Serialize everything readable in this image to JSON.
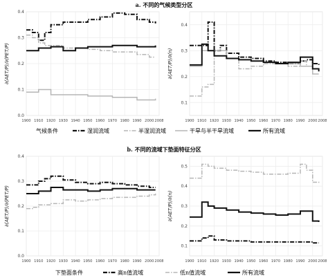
{
  "section_a": {
    "title": "a. 不同的气候类型分区"
  },
  "section_b": {
    "title": "b. 不同的流域下垫面特征分区"
  },
  "legend_a": {
    "title": "气候条件",
    "items": [
      {
        "label": "湿润流域",
        "style": "dash-dot"
      },
      {
        "label": "半湿润流域",
        "style": "dash-dot-gray"
      },
      {
        "label": "干旱与半干旱流域",
        "style": "solid-gray"
      },
      {
        "label": "所有流域",
        "style": "solid-black"
      }
    ]
  },
  "legend_b": {
    "title": "下垫面条件",
    "items": [
      {
        "label": "高n值流域",
        "style": "dash-dot"
      },
      {
        "label": "低n值流域",
        "style": "dash-dot-gray"
      },
      {
        "label": "所有流域",
        "style": "solid-black"
      }
    ]
  },
  "colors": {
    "black": "#111111",
    "gray": "#b5b5b5",
    "grid": "#ececec"
  },
  "chart_data": [
    {
      "id": "a1",
      "type": "line",
      "ylabel": "∂(AET/P)/∂(PET/P)",
      "xticks": [
        "1900",
        "1910",
        "1920",
        "1930",
        "1940",
        "1950",
        "1960",
        "1970",
        "1980",
        "1990",
        "2000",
        "2008"
      ],
      "xlim": [
        1900,
        2008
      ],
      "ylim": [
        0,
        0.4
      ],
      "yticks": [
        "0.0",
        "0.1",
        "0.2",
        "0.3",
        "0.4"
      ],
      "grid": true,
      "series": [
        {
          "style": "dash-dot",
          "x": [
            1900,
            1905,
            1910,
            1915,
            1920,
            1930,
            1940,
            1950,
            1960,
            1970,
            1980,
            1990,
            2000,
            2005
          ],
          "y": [
            0.33,
            0.32,
            0.29,
            0.32,
            0.35,
            0.36,
            0.36,
            0.37,
            0.38,
            0.395,
            0.39,
            0.37,
            0.36,
            0.355
          ]
        },
        {
          "style": "dash-dot-gray",
          "x": [
            1900,
            1905,
            1910,
            1915,
            1920,
            1930,
            1940,
            1950,
            1960,
            1970,
            1980,
            1990,
            2000,
            2005
          ],
          "y": [
            0.31,
            0.3,
            0.28,
            0.27,
            0.27,
            0.26,
            0.26,
            0.255,
            0.25,
            0.245,
            0.245,
            0.235,
            0.225,
            0.225
          ]
        },
        {
          "style": "solid-gray",
          "x": [
            1900,
            1910,
            1920,
            1930,
            1940,
            1950,
            1960,
            1970,
            1980,
            1990,
            2000,
            2005
          ],
          "y": [
            0.09,
            0.1,
            0.08,
            0.08,
            0.08,
            0.075,
            0.075,
            0.07,
            0.07,
            0.06,
            0.06,
            0.065
          ]
        },
        {
          "style": "solid-black",
          "x": [
            1900,
            1910,
            1920,
            1930,
            1940,
            1950,
            1960,
            1970,
            1980,
            1990,
            2000,
            2005
          ],
          "y": [
            0.25,
            0.26,
            0.265,
            0.25,
            0.26,
            0.265,
            0.265,
            0.27,
            0.27,
            0.265,
            0.265,
            0.27
          ]
        }
      ]
    },
    {
      "id": "a2",
      "type": "line",
      "ylabel": "∂(AET/P)/∂(n)",
      "xticks": [
        "1900",
        "1910",
        "1920",
        "1930",
        "1940",
        "1950",
        "1960",
        "1970",
        "1980",
        "1990",
        "2000",
        "2008"
      ],
      "xlim": [
        1900,
        2008
      ],
      "ylim": [
        0.05,
        0.45
      ],
      "yticks": [
        "0.1",
        "0.2",
        "0.3",
        "0.4"
      ],
      "grid": true,
      "series": [
        {
          "style": "dash-dot",
          "x": [
            1900,
            1910,
            1915,
            1920,
            1925,
            1930,
            1940,
            1950,
            1960,
            1970,
            1980,
            1990,
            1995,
            2000,
            2005
          ],
          "y": [
            0.32,
            0.32,
            0.41,
            0.3,
            0.32,
            0.29,
            0.275,
            0.27,
            0.26,
            0.255,
            0.25,
            0.26,
            0.265,
            0.25,
            0.24
          ]
        },
        {
          "style": "dash-dot-gray",
          "x": [
            1900,
            1905,
            1910,
            1915,
            1920,
            1930,
            1940,
            1950,
            1960,
            1970,
            1980,
            1990,
            1995,
            2000,
            2005
          ],
          "y": [
            0.125,
            0.125,
            0.16,
            0.17,
            0.3,
            0.27,
            0.23,
            0.24,
            0.25,
            0.25,
            0.24,
            0.26,
            0.24,
            0.23,
            0.22
          ]
        },
        {
          "style": "solid-gray",
          "x": [
            1900,
            1910,
            1920,
            1930,
            1940,
            1950,
            1960,
            1970,
            1980,
            1990,
            2000,
            2005
          ],
          "y": [
            0.24,
            0.3,
            0.3,
            0.27,
            0.265,
            0.26,
            0.255,
            0.25,
            0.25,
            0.24,
            0.21,
            0.21
          ]
        },
        {
          "style": "solid-black",
          "x": [
            1900,
            1910,
            1915,
            1920,
            1930,
            1940,
            1950,
            1960,
            1970,
            1980,
            1990,
            2000,
            2005
          ],
          "y": [
            0.245,
            0.325,
            0.3,
            0.28,
            0.27,
            0.265,
            0.26,
            0.255,
            0.25,
            0.255,
            0.275,
            0.23,
            0.22
          ]
        }
      ]
    },
    {
      "id": "b1",
      "type": "line",
      "ylabel": "∂(AET/P)/∂(PET/P)",
      "xticks": [
        "1900",
        "1910",
        "1920",
        "1930",
        "1940",
        "1950",
        "1960",
        "1970",
        "1980",
        "1990",
        "2000",
        "2008"
      ],
      "xlim": [
        1900,
        2008
      ],
      "ylim": [
        0,
        0.4
      ],
      "yticks": [
        "0.0",
        "0.1",
        "0.2",
        "0.3",
        "0.4"
      ],
      "grid": true,
      "series": [
        {
          "style": "dash-dot",
          "x": [
            1900,
            1910,
            1915,
            1920,
            1930,
            1940,
            1950,
            1960,
            1970,
            1980,
            1990,
            2000,
            2005
          ],
          "y": [
            0.285,
            0.3,
            0.31,
            0.32,
            0.305,
            0.295,
            0.29,
            0.295,
            0.29,
            0.285,
            0.28,
            0.275,
            0.275
          ]
        },
        {
          "style": "dash-dot-gray",
          "x": [
            1900,
            1905,
            1910,
            1920,
            1930,
            1940,
            1950,
            1960,
            1970,
            1980,
            1990,
            2000,
            2005
          ],
          "y": [
            0.19,
            0.195,
            0.205,
            0.21,
            0.225,
            0.22,
            0.225,
            0.23,
            0.235,
            0.235,
            0.24,
            0.245,
            0.25
          ]
        },
        {
          "style": "solid-black",
          "x": [
            1900,
            1910,
            1920,
            1930,
            1940,
            1950,
            1960,
            1970,
            1980,
            1990,
            2000,
            2005
          ],
          "y": [
            0.25,
            0.26,
            0.275,
            0.265,
            0.265,
            0.26,
            0.265,
            0.27,
            0.27,
            0.265,
            0.265,
            0.265
          ]
        }
      ]
    },
    {
      "id": "b2",
      "type": "line",
      "ylabel": "∂(AET/P)/∂(n)",
      "xticks": [
        "1900",
        "1910",
        "1920",
        "1930",
        "1940",
        "1950",
        "1960",
        "1970",
        "1980",
        "1990",
        "2000",
        "2008"
      ],
      "xlim": [
        1900,
        2008
      ],
      "ylim": [
        0.05,
        0.55
      ],
      "yticks": [
        "0.1",
        "0.2",
        "0.3",
        "0.4",
        "0.5"
      ],
      "grid": true,
      "series": [
        {
          "style": "dash-dot-gray",
          "x": [
            1900,
            1905,
            1910,
            1915,
            1920,
            1930,
            1940,
            1950,
            1960,
            1970,
            1980,
            1990,
            1995,
            2000,
            2005
          ],
          "y": [
            0.44,
            0.44,
            0.51,
            0.5,
            0.49,
            0.48,
            0.475,
            0.47,
            0.46,
            0.46,
            0.465,
            0.51,
            0.48,
            0.42,
            0.415
          ]
        },
        {
          "style": "solid-black",
          "x": [
            1900,
            1910,
            1915,
            1920,
            1930,
            1940,
            1950,
            1960,
            1970,
            1980,
            1990,
            2000,
            2005
          ],
          "y": [
            0.245,
            0.32,
            0.3,
            0.29,
            0.28,
            0.27,
            0.265,
            0.26,
            0.255,
            0.26,
            0.275,
            0.225,
            0.22
          ]
        },
        {
          "style": "dash-dot",
          "x": [
            1900,
            1910,
            1915,
            1920,
            1930,
            1940,
            1950,
            1960,
            1970,
            1980,
            1990,
            2000,
            2005
          ],
          "y": [
            0.125,
            0.14,
            0.15,
            0.13,
            0.125,
            0.125,
            0.12,
            0.12,
            0.12,
            0.12,
            0.12,
            0.115,
            0.115
          ]
        }
      ]
    }
  ]
}
